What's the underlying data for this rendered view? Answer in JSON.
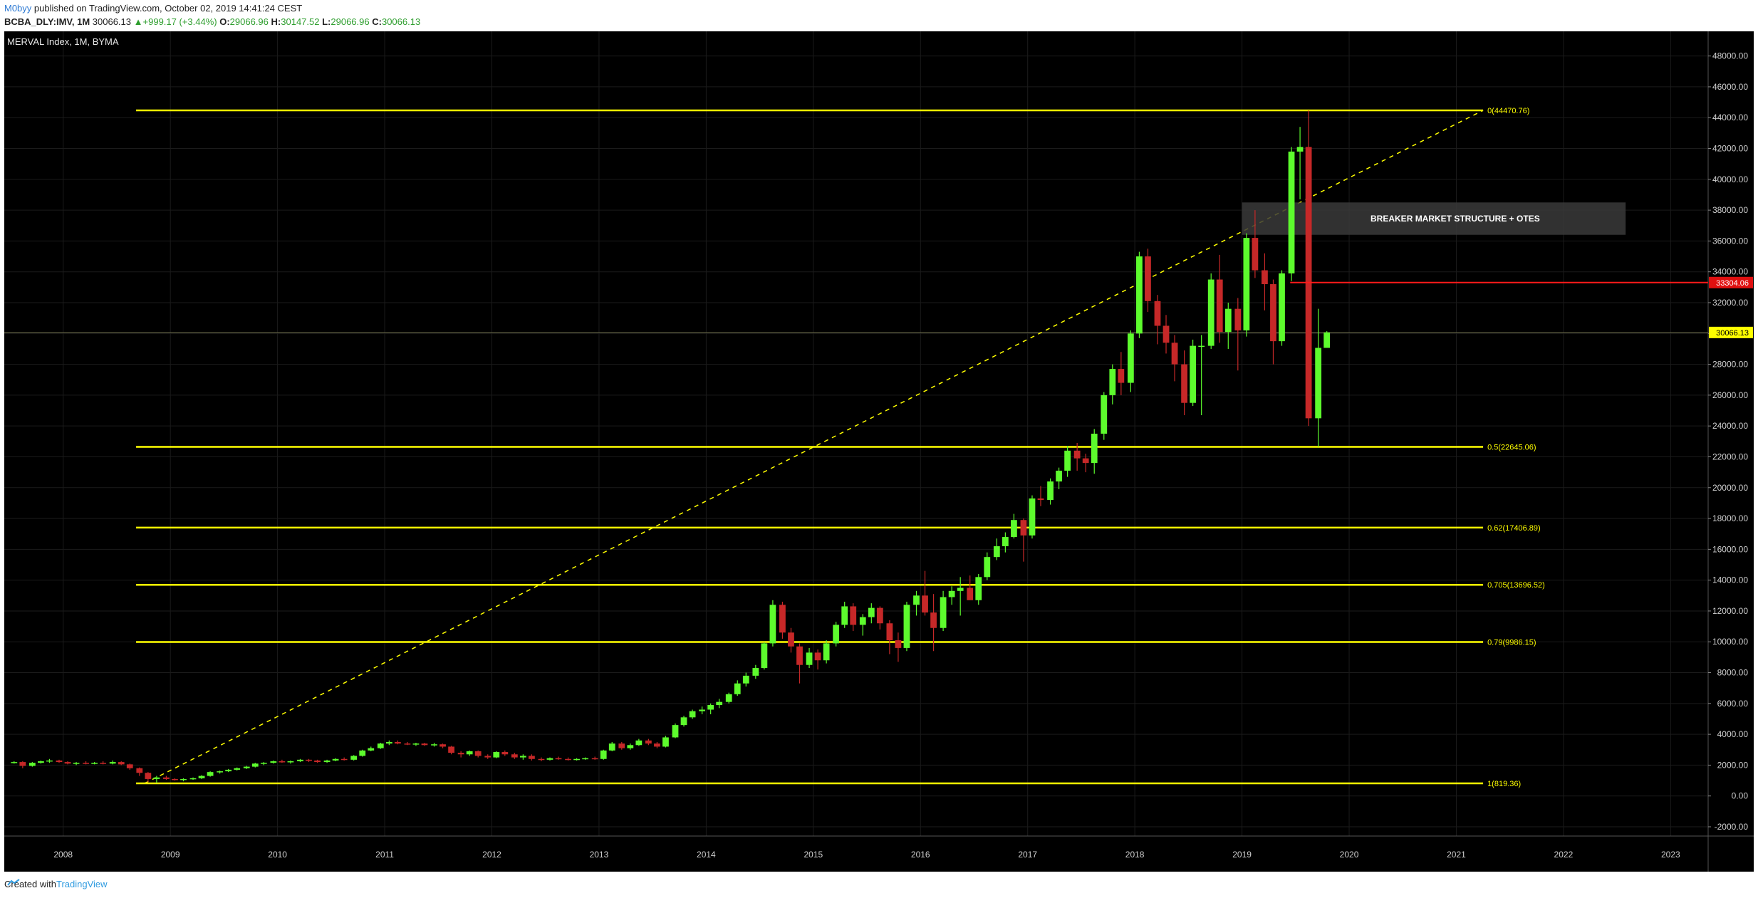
{
  "header": {
    "author": "M0byy",
    "published_text": "published on TradingView.com, October 02, 2019 14:41:24 CEST",
    "symbol": "BCBA_DLY:IMV, 1M",
    "last": "30066.13",
    "change": "+999.17 (+3.44%)",
    "o_label": "O:",
    "o_value": "29066.96",
    "h_label": "H:",
    "h_value": "30147.52",
    "l_label": "L:",
    "l_value": "29066.96",
    "c_label": "C:",
    "c_value": "30066.13"
  },
  "footer": {
    "created_with": "Created with",
    "brand": "TradingView"
  },
  "colors": {
    "up": "#5dfb2d",
    "down": "#c62828",
    "fib": "#ffff00",
    "trend": "#ffff00",
    "resistance": "#ff1a1a",
    "background": "#000000"
  },
  "chart_data": {
    "type": "candlestick",
    "title": "MERVAL Index, 1M, BYMA",
    "yticks": [
      "48000.00",
      "46000.00",
      "44000.00",
      "42000.00",
      "40000.00",
      "38000.00",
      "36000.00",
      "34000.00",
      "32000.00",
      "30000.00",
      "28000.00",
      "26000.00",
      "24000.00",
      "22000.00",
      "20000.00",
      "18000.00",
      "16000.00",
      "14000.00",
      "12000.00",
      "10000.00",
      "8000.00",
      "6000.00",
      "4000.00",
      "2000.00",
      "0.00",
      "-2000.00"
    ],
    "xticks": [
      "2008",
      "2009",
      "2010",
      "2011",
      "2012",
      "2013",
      "2014",
      "2015",
      "2016",
      "2017",
      "2018",
      "2019",
      "2020",
      "2021",
      "2022",
      "2023"
    ],
    "ylim": [
      -2600,
      49600
    ],
    "xlim": [
      2007.45,
      2023.35
    ],
    "fib_levels": [
      {
        "label": "0(44470.76)",
        "value": 44470.76
      },
      {
        "label": "0.5(22645.06)",
        "value": 22645.06
      },
      {
        "label": "0.62(17406.89)",
        "value": 17406.89
      },
      {
        "label": "0.705(13696.52)",
        "value": 13696.52
      },
      {
        "label": "0.79(9986.15)",
        "value": 9986.15
      },
      {
        "label": "1(819.36)",
        "value": 819.36
      }
    ],
    "fib_x_start": 2008.68,
    "fib_x_end": 2021.25,
    "trendline": {
      "from": [
        2008.76,
        819.36
      ],
      "to": [
        2021.25,
        44470.76
      ]
    },
    "resistance": {
      "value": 33304.06,
      "label": "33304.06",
      "from_x": 2019.45
    },
    "current_price": {
      "value": 30066.13,
      "label": "30066.13"
    },
    "annotation": {
      "text": "BREAKER MARKET STRUCTURE + OTES",
      "x0": 2019.0,
      "x1": 2022.58,
      "y0": 36400,
      "y1": 38500
    },
    "candles": [
      [
        2007.5,
        2150,
        2250,
        2100,
        2200
      ],
      [
        2007.58,
        2200,
        2250,
        1800,
        1950
      ],
      [
        2007.67,
        1950,
        2200,
        1900,
        2150
      ],
      [
        2007.75,
        2150,
        2300,
        2100,
        2250
      ],
      [
        2007.83,
        2250,
        2400,
        2150,
        2300
      ],
      [
        2007.92,
        2300,
        2350,
        2150,
        2200
      ],
      [
        2008.0,
        2200,
        2250,
        2050,
        2100
      ],
      [
        2008.08,
        2100,
        2200,
        2000,
        2150
      ],
      [
        2008.17,
        2150,
        2250,
        2050,
        2100
      ],
      [
        2008.25,
        2100,
        2200,
        2050,
        2150
      ],
      [
        2008.33,
        2150,
        2250,
        2050,
        2100
      ],
      [
        2008.42,
        2100,
        2300,
        2050,
        2200
      ],
      [
        2008.5,
        2200,
        2250,
        2000,
        2050
      ],
      [
        2008.58,
        2050,
        2100,
        1700,
        1800
      ],
      [
        2008.67,
        1800,
        1850,
        1300,
        1500
      ],
      [
        2008.75,
        1500,
        1550,
        900,
        1100
      ],
      [
        2008.83,
        1100,
        1300,
        850,
        1200
      ],
      [
        2008.92,
        1200,
        1300,
        1050,
        1100
      ],
      [
        2009.0,
        1100,
        1150,
        1000,
        1050
      ],
      [
        2009.08,
        1050,
        1150,
        950,
        1100
      ],
      [
        2009.17,
        1100,
        1200,
        1050,
        1150
      ],
      [
        2009.25,
        1150,
        1350,
        1100,
        1300
      ],
      [
        2009.33,
        1300,
        1600,
        1250,
        1550
      ],
      [
        2009.42,
        1550,
        1650,
        1450,
        1600
      ],
      [
        2009.5,
        1600,
        1750,
        1550,
        1700
      ],
      [
        2009.58,
        1700,
        1850,
        1650,
        1800
      ],
      [
        2009.67,
        1800,
        1950,
        1750,
        1900
      ],
      [
        2009.75,
        1900,
        2150,
        1850,
        2100
      ],
      [
        2009.83,
        2100,
        2200,
        2000,
        2150
      ],
      [
        2009.92,
        2150,
        2300,
        2100,
        2250
      ],
      [
        2010.0,
        2250,
        2350,
        2150,
        2200
      ],
      [
        2010.08,
        2200,
        2300,
        2100,
        2250
      ],
      [
        2010.17,
        2250,
        2400,
        2200,
        2350
      ],
      [
        2010.25,
        2350,
        2400,
        2200,
        2300
      ],
      [
        2010.33,
        2300,
        2350,
        2150,
        2200
      ],
      [
        2010.42,
        2200,
        2350,
        2150,
        2300
      ],
      [
        2010.5,
        2300,
        2450,
        2250,
        2400
      ],
      [
        2010.58,
        2400,
        2500,
        2300,
        2350
      ],
      [
        2010.67,
        2350,
        2650,
        2300,
        2600
      ],
      [
        2010.75,
        2600,
        3000,
        2550,
        2950
      ],
      [
        2010.83,
        2950,
        3200,
        2900,
        3100
      ],
      [
        2010.92,
        3100,
        3450,
        3050,
        3400
      ],
      [
        2011.0,
        3400,
        3600,
        3300,
        3500
      ],
      [
        2011.08,
        3500,
        3600,
        3350,
        3400
      ],
      [
        2011.17,
        3400,
        3500,
        3300,
        3350
      ],
      [
        2011.25,
        3350,
        3450,
        3250,
        3400
      ],
      [
        2011.33,
        3400,
        3450,
        3250,
        3300
      ],
      [
        2011.42,
        3300,
        3450,
        3200,
        3350
      ],
      [
        2011.5,
        3350,
        3400,
        3100,
        3200
      ],
      [
        2011.58,
        3200,
        3250,
        2700,
        2800
      ],
      [
        2011.67,
        2800,
        2900,
        2500,
        2700
      ],
      [
        2011.75,
        2700,
        2950,
        2600,
        2900
      ],
      [
        2011.83,
        2900,
        2950,
        2500,
        2600
      ],
      [
        2011.92,
        2600,
        2700,
        2400,
        2500
      ],
      [
        2012.0,
        2500,
        2900,
        2450,
        2850
      ],
      [
        2012.08,
        2850,
        2950,
        2600,
        2700
      ],
      [
        2012.17,
        2700,
        2800,
        2400,
        2500
      ],
      [
        2012.25,
        2500,
        2700,
        2350,
        2600
      ],
      [
        2012.33,
        2600,
        2700,
        2300,
        2400
      ],
      [
        2012.42,
        2400,
        2500,
        2250,
        2350
      ],
      [
        2012.5,
        2350,
        2500,
        2300,
        2450
      ],
      [
        2012.58,
        2450,
        2550,
        2350,
        2400
      ],
      [
        2012.67,
        2400,
        2500,
        2300,
        2350
      ],
      [
        2012.75,
        2350,
        2450,
        2300,
        2400
      ],
      [
        2012.83,
        2400,
        2500,
        2350,
        2450
      ],
      [
        2012.92,
        2450,
        2550,
        2350,
        2400
      ],
      [
        2013.0,
        2400,
        3000,
        2350,
        2950
      ],
      [
        2013.08,
        2950,
        3500,
        2900,
        3400
      ],
      [
        2013.17,
        3400,
        3500,
        3000,
        3100
      ],
      [
        2013.25,
        3100,
        3400,
        3000,
        3300
      ],
      [
        2013.33,
        3300,
        3700,
        3250,
        3600
      ],
      [
        2013.42,
        3600,
        3700,
        3300,
        3400
      ],
      [
        2013.5,
        3400,
        3500,
        3100,
        3200
      ],
      [
        2013.58,
        3200,
        3900,
        3150,
        3800
      ],
      [
        2013.67,
        3800,
        4700,
        3750,
        4600
      ],
      [
        2013.75,
        4600,
        5200,
        4500,
        5100
      ],
      [
        2013.83,
        5100,
        5600,
        5000,
        5500
      ],
      [
        2013.92,
        5500,
        5800,
        5300,
        5600
      ],
      [
        2014.0,
        5600,
        6000,
        5300,
        5900
      ],
      [
        2014.08,
        5900,
        6300,
        5700,
        6100
      ],
      [
        2014.17,
        6100,
        6700,
        6000,
        6600
      ],
      [
        2014.25,
        6600,
        7500,
        6500,
        7300
      ],
      [
        2014.33,
        7300,
        8000,
        7100,
        7800
      ],
      [
        2014.42,
        7800,
        8500,
        7600,
        8300
      ],
      [
        2014.5,
        8300,
        10000,
        8200,
        9900
      ],
      [
        2014.58,
        9900,
        12700,
        9700,
        12400
      ],
      [
        2014.67,
        12400,
        12600,
        10200,
        10600
      ],
      [
        2014.75,
        10600,
        10900,
        9300,
        9700
      ],
      [
        2014.83,
        9700,
        9900,
        7300,
        8500
      ],
      [
        2014.92,
        8500,
        9600,
        8300,
        9300
      ],
      [
        2015.0,
        9300,
        9500,
        8200,
        8800
      ],
      [
        2015.08,
        8800,
        10100,
        8600,
        9900
      ],
      [
        2015.17,
        9900,
        11300,
        9700,
        11100
      ],
      [
        2015.25,
        11100,
        12600,
        10900,
        12300
      ],
      [
        2015.33,
        12300,
        12500,
        10700,
        11100
      ],
      [
        2015.42,
        11100,
        11800,
        10400,
        11600
      ],
      [
        2015.5,
        11600,
        12500,
        11200,
        12200
      ],
      [
        2015.58,
        12200,
        12300,
        10800,
        11200
      ],
      [
        2015.67,
        11200,
        11400,
        9200,
        10100
      ],
      [
        2015.75,
        10100,
        10600,
        8700,
        9600
      ],
      [
        2015.83,
        9600,
        12600,
        9400,
        12400
      ],
      [
        2015.92,
        12400,
        13300,
        11700,
        13000
      ],
      [
        2016.0,
        13000,
        14600,
        11700,
        11900
      ],
      [
        2016.08,
        11900,
        13100,
        9400,
        10900
      ],
      [
        2016.17,
        10900,
        13300,
        10700,
        12900
      ],
      [
        2016.25,
        12900,
        13600,
        12400,
        13300
      ],
      [
        2016.33,
        13300,
        14200,
        11700,
        13500
      ],
      [
        2016.42,
        13500,
        14300,
        12800,
        12700
      ],
      [
        2016.5,
        12700,
        14400,
        12400,
        14200
      ],
      [
        2016.58,
        14200,
        15800,
        14000,
        15500
      ],
      [
        2016.67,
        15500,
        16700,
        15300,
        16200
      ],
      [
        2016.75,
        16200,
        17100,
        15800,
        16800
      ],
      [
        2016.83,
        16800,
        18300,
        16700,
        17900
      ],
      [
        2016.92,
        17900,
        18000,
        15200,
        16900
      ],
      [
        2017.0,
        16900,
        19500,
        16700,
        19300
      ],
      [
        2017.08,
        19300,
        20100,
        18800,
        19200
      ],
      [
        2017.17,
        19200,
        20600,
        18900,
        20400
      ],
      [
        2017.25,
        20400,
        21300,
        19900,
        21100
      ],
      [
        2017.33,
        21100,
        22700,
        20700,
        22400
      ],
      [
        2017.42,
        22400,
        22900,
        21100,
        21900
      ],
      [
        2017.5,
        21900,
        22200,
        21000,
        21600
      ],
      [
        2017.58,
        21600,
        23800,
        20900,
        23500
      ],
      [
        2017.67,
        23500,
        26200,
        23100,
        26000
      ],
      [
        2017.75,
        26000,
        28000,
        25400,
        27700
      ],
      [
        2017.83,
        27700,
        28800,
        26000,
        26800
      ],
      [
        2017.92,
        26800,
        30200,
        26200,
        30000
      ],
      [
        2018.0,
        30000,
        35300,
        29700,
        35000
      ],
      [
        2018.08,
        35000,
        35500,
        31400,
        32100
      ],
      [
        2018.17,
        32100,
        32500,
        29300,
        30500
      ],
      [
        2018.25,
        30500,
        31200,
        28700,
        29400
      ],
      [
        2018.33,
        29400,
        29900,
        26900,
        28000
      ],
      [
        2018.42,
        28000,
        28900,
        24700,
        25500
      ],
      [
        2018.5,
        25500,
        29600,
        25300,
        29200
      ],
      [
        2018.58,
        29200,
        29900,
        24700,
        29200
      ],
      [
        2018.67,
        29200,
        33900,
        29000,
        33500
      ],
      [
        2018.75,
        33500,
        35100,
        29400,
        30100
      ],
      [
        2018.83,
        30100,
        32000,
        29000,
        31600
      ],
      [
        2018.92,
        31600,
        32300,
        27600,
        30200
      ],
      [
        2019.0,
        30200,
        36500,
        29800,
        36200
      ],
      [
        2019.08,
        36200,
        38000,
        33600,
        34100
      ],
      [
        2019.17,
        34100,
        35200,
        31500,
        33200
      ],
      [
        2019.25,
        33200,
        33500,
        28000,
        29500
      ],
      [
        2019.33,
        29500,
        34100,
        29200,
        33900
      ],
      [
        2019.42,
        33900,
        42100,
        33400,
        41800
      ],
      [
        2019.5,
        41800,
        43400,
        38700,
        42100
      ],
      [
        2019.58,
        42100,
        44470,
        24000,
        24500
      ],
      [
        2019.67,
        24500,
        31600,
        22645,
        29066
      ],
      [
        2019.75,
        29066.96,
        30147.52,
        29066.96,
        30066.13
      ]
    ]
  }
}
